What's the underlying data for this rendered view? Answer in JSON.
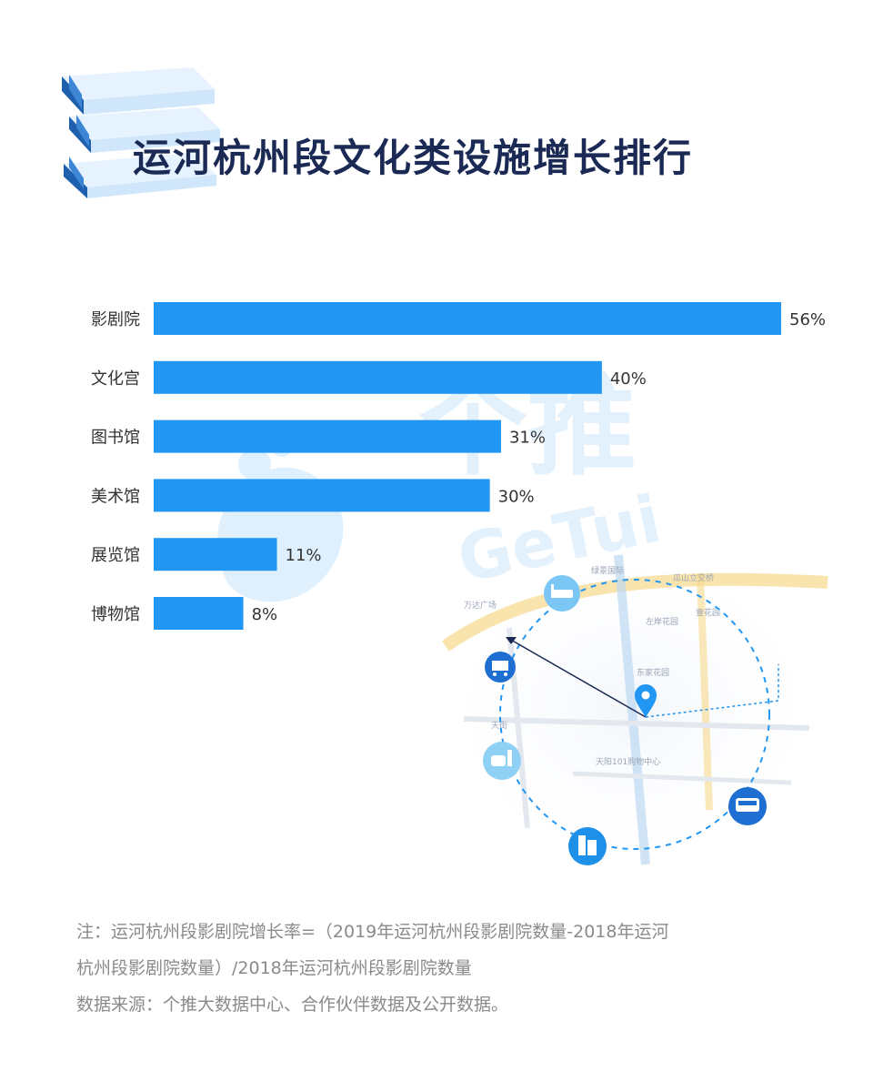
{
  "header": {
    "title": "运河杭州段文化类设施增长排行"
  },
  "chart_data": {
    "type": "bar",
    "orientation": "horizontal",
    "categories": [
      "影剧院",
      "文化宫",
      "图书馆",
      "美术馆",
      "展览馆",
      "博物馆"
    ],
    "values": [
      56,
      40,
      31,
      30,
      11,
      8
    ],
    "value_labels": [
      "56%",
      "40%",
      "31%",
      "30%",
      "11%",
      "8%"
    ],
    "unit": "%",
    "xlim": [
      0,
      56
    ],
    "grid": false,
    "bar_color": "#2196f3"
  },
  "watermark": {
    "cn_text": "个推",
    "en_text": "GeTui"
  },
  "map_labels": [
    "绿景国际",
    "瓜山立交桥",
    "万达广场",
    "左岸花园",
    "壹花园",
    "东家花园",
    "天街",
    "天阳101购物中心"
  ],
  "footer": {
    "note_line1": "注：运河杭州段影剧院增长率=（2019年运河杭州段影剧院数量-2018年运河",
    "note_line2": "杭州段影剧院数量）/2018年运河杭州段影剧院数量",
    "source": "数据来源：个推大数据中心、合作伙伴数据及公开数据。"
  },
  "colors": {
    "title": "#1b2a55",
    "bar": "#2196f3",
    "note": "#8a8a8a",
    "book_dark": "#1e5fae",
    "book_light": "#cfe6fb"
  }
}
